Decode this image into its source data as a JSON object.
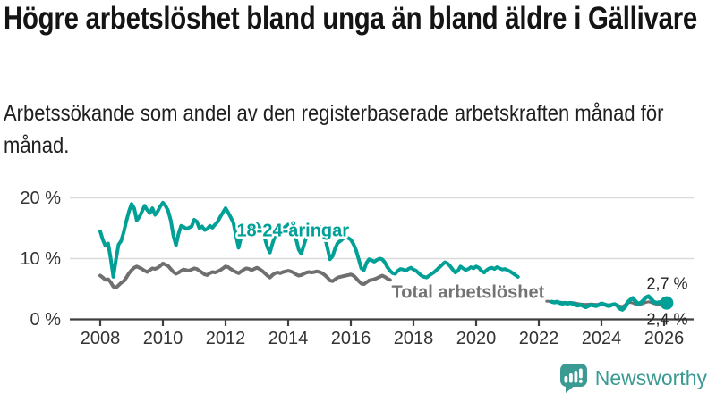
{
  "title": "Högre arbetslöshet bland unga än bland äldre i Gällivare",
  "subtitle": "Arbetssökande som andel av den registerbaserade arbetskraften månad för månad.",
  "brand": {
    "name": "Newsworthy",
    "color": "#3b9b93"
  },
  "chart_data": {
    "type": "line",
    "title": "Högre arbetslöshet bland unga än bland äldre i Gällivare",
    "xlabel": "",
    "ylabel": "",
    "grid": "horizontal-only",
    "legend_position": "inline-labels",
    "xlim": [
      2007.0,
      2026.95
    ],
    "ylim": [
      0,
      21
    ],
    "x_axis": {
      "ticks": [
        2008,
        2010,
        2012,
        2014,
        2016,
        2018,
        2020,
        2022,
        2024,
        2026
      ]
    },
    "y_axis": {
      "ticks": [
        {
          "value": 0,
          "label": "0 %"
        },
        {
          "value": 10,
          "label": "10 %"
        },
        {
          "value": 20,
          "label": "20 %"
        }
      ]
    },
    "style": {
      "grid_color": "#dadada",
      "axis_color": "#3f3f3f",
      "tick_label_color": "#333333",
      "accent_teal": "#00a096",
      "accent_gray": "#6f6f6f"
    },
    "series": [
      {
        "id": "total-2008-2017",
        "name": "Total arbetslöshet",
        "color": "#6f6f6f",
        "width": 4,
        "start_year": 2008.0,
        "points_per_year": 12,
        "values": [
          7.2,
          6.9,
          6.5,
          6.6,
          6.1,
          5.4,
          5.2,
          5.6,
          6.0,
          6.3,
          6.9,
          7.6,
          8.1,
          8.5,
          8.7,
          8.5,
          8.3,
          8.0,
          7.8,
          8.1,
          8.4,
          8.3,
          8.5,
          8.8,
          9.2,
          9.0,
          8.8,
          8.3,
          7.8,
          7.5,
          7.7,
          8.0,
          8.2,
          8.1,
          8.0,
          8.2,
          8.4,
          8.3,
          8.0,
          7.7,
          7.4,
          7.3,
          7.6,
          7.8,
          7.7,
          7.9,
          8.1,
          8.4,
          8.7,
          8.6,
          8.3,
          8.0,
          7.8,
          7.6,
          7.9,
          8.2,
          8.4,
          8.3,
          8.1,
          8.3,
          8.5,
          8.3,
          8.0,
          7.6,
          7.2,
          6.9,
          7.3,
          7.6,
          7.7,
          7.6,
          7.8,
          7.9,
          8.0,
          7.9,
          7.7,
          7.4,
          7.2,
          7.3,
          7.5,
          7.7,
          7.8,
          7.7,
          7.8,
          7.9,
          7.8,
          7.6,
          7.3,
          6.9,
          6.4,
          6.3,
          6.6,
          6.9,
          7.0,
          7.1,
          7.2,
          7.3,
          7.4,
          7.2,
          6.8,
          6.3,
          5.9,
          5.8,
          6.1,
          6.4,
          6.5,
          6.6,
          6.8,
          7.0,
          7.2,
          7.0,
          6.7,
          6.5
        ]
      },
      {
        "id": "young-2008-2021",
        "name": "18-24-åringar",
        "color": "#00a096",
        "width": 4,
        "start_year": 2008.0,
        "points_per_year": 12,
        "values": [
          14.5,
          13.1,
          12.1,
          12.5,
          10.0,
          7.0,
          9.8,
          12.3,
          12.9,
          14.4,
          16.2,
          17.8,
          19.0,
          18.3,
          16.3,
          16.9,
          17.8,
          18.7,
          18.0,
          17.5,
          18.3,
          17.2,
          17.8,
          18.6,
          19.2,
          18.7,
          17.9,
          16.3,
          13.8,
          12.2,
          14.1,
          15.4,
          15.2,
          14.9,
          15.1,
          15.3,
          16.4,
          16.1,
          15.0,
          15.3,
          14.7,
          14.9,
          15.4,
          15.1,
          15.6,
          16.1,
          16.9,
          17.6,
          18.3,
          17.6,
          16.8,
          15.9,
          13.8,
          11.8,
          13.6,
          14.9,
          15.2,
          15.5,
          15.1,
          15.4,
          15.7,
          15.2,
          14.6,
          13.4,
          11.9,
          11.0,
          12.5,
          13.8,
          14.2,
          14.5,
          14.9,
          15.3,
          15.6,
          15.1,
          14.3,
          13.2,
          11.5,
          10.8,
          12.2,
          13.6,
          14.0,
          14.3,
          14.6,
          15.0,
          15.3,
          14.7,
          13.6,
          11.8,
          9.9,
          10.4,
          11.7,
          12.6,
          12.9,
          13.3,
          13.6,
          13.4,
          13.1,
          12.4,
          11.4,
          9.9,
          8.4,
          8.1,
          9.3,
          9.9,
          9.7,
          9.5,
          9.8,
          10.0,
          9.9,
          9.4,
          8.6,
          8.0,
          7.6,
          7.5,
          8.0,
          8.3,
          8.2,
          8.0,
          8.3,
          8.5,
          8.2,
          8.0,
          7.6,
          7.2,
          7.0,
          6.9,
          7.2,
          7.5,
          7.8,
          8.2,
          8.6,
          9.0,
          9.4,
          9.2,
          8.8,
          8.2,
          7.7,
          8.0,
          8.7,
          8.4,
          8.1,
          8.3,
          8.6,
          8.4,
          8.7,
          8.5,
          8.0,
          7.7,
          8.1,
          8.4,
          8.5,
          8.3,
          8.6,
          8.4,
          8.2,
          8.3,
          8.1,
          7.9,
          7.6,
          7.3,
          7.0
        ]
      },
      {
        "id": "total-2022-2026",
        "name": "Total arbetslöshet",
        "color": "#6f6f6f",
        "width": 3,
        "start_year": 2022.25,
        "points_per_year": 12,
        "values": [
          3.0,
          2.95,
          2.9,
          2.85,
          2.9,
          2.85,
          2.8,
          2.8,
          2.75,
          2.8,
          2.75,
          2.7,
          2.6,
          2.55,
          2.5,
          2.45,
          2.5,
          2.55,
          2.5,
          2.45,
          2.5,
          2.55,
          2.5,
          2.45,
          2.4,
          2.45,
          2.5,
          2.4,
          2.2,
          2.1,
          2.4,
          2.7,
          2.8,
          2.7,
          2.5,
          2.4,
          2.5,
          2.6,
          2.8,
          2.9,
          2.8,
          2.6,
          2.5,
          2.45,
          2.4,
          2.4,
          2.4
        ]
      },
      {
        "id": "young-2022-2026",
        "name": "18-24-åringar",
        "color": "#00a096",
        "width": 4.5,
        "start_year": 2022.4167,
        "points_per_year": 12,
        "end_dot": true,
        "values": [
          2.9,
          2.8,
          2.9,
          2.7,
          2.6,
          2.7,
          2.6,
          2.7,
          2.6,
          2.4,
          2.3,
          2.4,
          2.2,
          2.0,
          2.2,
          2.4,
          2.3,
          2.2,
          2.4,
          2.6,
          2.5,
          2.3,
          2.2,
          2.4,
          2.5,
          2.3,
          1.8,
          1.6,
          2.0,
          2.8,
          3.2,
          3.5,
          3.0,
          2.6,
          2.7,
          3.1,
          3.6,
          3.8,
          3.4,
          2.9,
          2.7,
          2.8,
          2.9,
          2.8,
          2.7
        ]
      }
    ],
    "annotations": [
      {
        "id": "series-label-young",
        "text": "18-24-åringar",
        "x_year": 2014.15,
        "y_pct": 13.7,
        "anchor": "middle",
        "color": "#00a096",
        "bold": true,
        "halo": true,
        "size": 20
      },
      {
        "id": "series-label-total",
        "text": "Total arbetslöshet",
        "x_year": 2017.3,
        "y_pct": 3.5,
        "anchor": "start",
        "color": "#737373",
        "bold": true,
        "halo": true,
        "size": 20
      },
      {
        "id": "end-value-young",
        "text": "2,7 %",
        "x_year": 2026.1,
        "y_pct": 5.0,
        "anchor": "middle",
        "color": "#222222",
        "bold": false,
        "halo": false,
        "size": 18
      },
      {
        "id": "end-value-total",
        "text": "2,4 %",
        "x_year": 2026.1,
        "y_pct": -0.85,
        "anchor": "middle",
        "color": "#222222",
        "bold": false,
        "halo": false,
        "size": 18
      }
    ],
    "end_values": {
      "young": 2.7,
      "total": 2.4
    }
  }
}
